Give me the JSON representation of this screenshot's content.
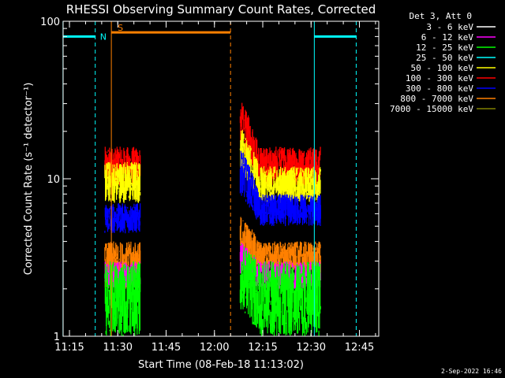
{
  "chart_data": {
    "type": "line",
    "title": "RHESSI Observing Summary Count Rates, Corrected",
    "xlabel": "Start Time (08-Feb-18 11:13:02)",
    "ylabel": "Corrected Count Rate (s⁻¹ detector⁻¹)",
    "y_scale": "log",
    "ylim": [
      1,
      100
    ],
    "xlim": [
      "11:13",
      "12:51"
    ],
    "x_ticks": [
      "11:15",
      "11:30",
      "11:45",
      "12:00",
      "12:15",
      "12:30",
      "12:45"
    ],
    "y_ticks": [
      "1",
      "10",
      "100"
    ],
    "legend_header": "Det 3, Att 0",
    "legend_position": "top-right",
    "footer_date": "2-Sep-2022 16:46",
    "series": [
      {
        "name": "3 - 6 keV",
        "color": "#ffffff"
      },
      {
        "name": "6 - 12 keV",
        "color": "#ff00ff"
      },
      {
        "name": "12 - 25 keV",
        "color": "#00ff00"
      },
      {
        "name": "25 - 50 keV",
        "color": "#00ffff"
      },
      {
        "name": "50 - 100 keV",
        "color": "#ffff00"
      },
      {
        "name": "100 - 300 keV",
        "color": "#ff0000"
      },
      {
        "name": "300 - 800 keV",
        "color": "#0000ff"
      },
      {
        "name": "800 - 7000 keV",
        "color": "#ff8000"
      },
      {
        "name": "7000 - 15000 keV",
        "color": "#808000"
      }
    ],
    "data_segments": [
      {
        "start": "11:26",
        "end": "11:37"
      },
      {
        "start": "12:08",
        "end": "12:33"
      }
    ],
    "bands": [
      {
        "color": "#ff0000",
        "seg1": [
          9,
          16
        ],
        "seg2_peak": [
          16,
          32
        ],
        "seg2_tail": [
          9,
          16
        ]
      },
      {
        "color": "#ffff00",
        "seg1": [
          7,
          13
        ],
        "seg2_peak": [
          11,
          22
        ],
        "seg2_tail": [
          7,
          12
        ]
      },
      {
        "color": "#0000ff",
        "seg1": [
          4.5,
          7
        ],
        "seg2_peak": [
          8,
          16
        ],
        "seg2_tail": [
          5,
          8
        ]
      },
      {
        "color": "#ff8000",
        "seg1": [
          2,
          4
        ],
        "seg2_peak": [
          3,
          6
        ],
        "seg2_tail": [
          2.5,
          4
        ]
      },
      {
        "color": "#ff00ff",
        "seg1": [
          2,
          3
        ],
        "seg2_peak": [
          2.5,
          4
        ],
        "seg2_tail": [
          2,
          3
        ]
      },
      {
        "color": "#00ff00",
        "seg1": [
          1,
          3
        ],
        "seg2_peak": [
          1.5,
          4
        ],
        "seg2_tail": [
          1,
          3
        ]
      }
    ],
    "regions": [
      {
        "type": "N",
        "label": "N",
        "color": "#00ffff",
        "start": "11:13",
        "end": "11:23",
        "level": 80
      },
      {
        "type": "S",
        "label": "S",
        "color": "#ff8000",
        "start": "11:28",
        "end": "12:05",
        "level": 85
      },
      {
        "type": "N",
        "label": "",
        "color": "#00ffff",
        "start": "12:31",
        "end": "12:44",
        "level": 80
      }
    ],
    "vlines": [
      {
        "t": "11:13",
        "color": "#00ffff",
        "style": "solid"
      },
      {
        "t": "11:23",
        "color": "#00ffff",
        "style": "dashed"
      },
      {
        "t": "11:28",
        "color": "#ff8000",
        "style": "solid"
      },
      {
        "t": "12:05",
        "color": "#ff8000",
        "style": "dashed"
      },
      {
        "t": "12:31",
        "color": "#00ffff",
        "style": "solid"
      },
      {
        "t": "12:44",
        "color": "#00ffff",
        "style": "dashed"
      }
    ]
  }
}
